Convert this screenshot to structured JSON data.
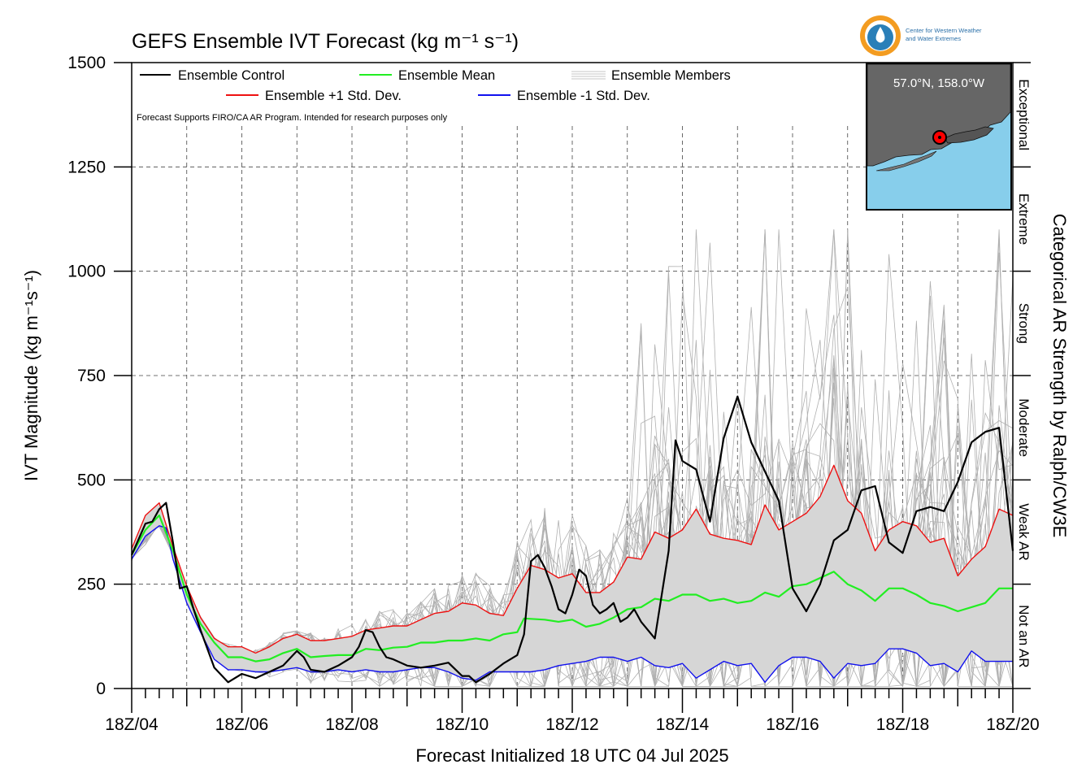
{
  "chart_data": {
    "type": "line",
    "title": "GEFS Ensemble IVT Forecast (kg m⁻¹ s⁻¹)",
    "xlabel": "Forecast Initialized 18 UTC 04 Jul 2025",
    "ylabel": "IVT Magnitude (kg m⁻¹s⁻¹)",
    "right_label": "Categorical AR Strength by Ralph/CW3E",
    "note": "Forecast Supports FIRO/CA AR Program. Intended for research purposes only",
    "x_unit": "days since 18Z/04",
    "xlim": [
      0,
      16
    ],
    "ylim": [
      0,
      1500
    ],
    "x_ticks": [
      {
        "x": 0,
        "label": "18Z/04"
      },
      {
        "x": 2,
        "label": "18Z/06"
      },
      {
        "x": 4,
        "label": "18Z/08"
      },
      {
        "x": 6,
        "label": "18Z/10"
      },
      {
        "x": 8,
        "label": "18Z/12"
      },
      {
        "x": 10,
        "label": "18Z/14"
      },
      {
        "x": 12,
        "label": "18Z/16"
      },
      {
        "x": 14,
        "label": "18Z/18"
      },
      {
        "x": 16,
        "label": "18Z/20"
      }
    ],
    "y_ticks": [
      0,
      250,
      500,
      750,
      1000,
      1250,
      1500
    ],
    "grid": true,
    "legend": [
      {
        "name": "Ensemble Control",
        "color": "#000000"
      },
      {
        "name": "Ensemble Mean",
        "color": "#22ee22"
      },
      {
        "name": "Ensemble Members",
        "color": "#b0b0b0"
      },
      {
        "name": "Ensemble +1 Std. Dev.",
        "color": "#ee1111"
      },
      {
        "name": "Ensemble -1 Std. Dev.",
        "color": "#1111ee"
      }
    ],
    "categories": [
      {
        "label": "Not an AR",
        "from": 0,
        "to": 250
      },
      {
        "label": "Weak AR",
        "from": 250,
        "to": 500
      },
      {
        "label": "Moderate",
        "from": 500,
        "to": 750
      },
      {
        "label": "Strong",
        "from": 750,
        "to": 1000
      },
      {
        "label": "Extreme",
        "from": 1000,
        "to": 1250
      },
      {
        "label": "Exceptional",
        "from": 1250,
        "to": 1500
      }
    ],
    "series": [
      {
        "name": "Ensemble Control",
        "color": "#000000",
        "points": [
          [
            0,
            320
          ],
          [
            0.25,
            395
          ],
          [
            0.375,
            400
          ],
          [
            0.5,
            430
          ],
          [
            0.625,
            445
          ],
          [
            0.75,
            350
          ],
          [
            0.875,
            240
          ],
          [
            1,
            245
          ],
          [
            1.125,
            190
          ],
          [
            1.25,
            140
          ],
          [
            1.5,
            50
          ],
          [
            1.75,
            15
          ],
          [
            2,
            35
          ],
          [
            2.25,
            25
          ],
          [
            2.5,
            40
          ],
          [
            2.75,
            55
          ],
          [
            3,
            90
          ],
          [
            3.125,
            75
          ],
          [
            3.25,
            45
          ],
          [
            3.5,
            40
          ],
          [
            3.75,
            55
          ],
          [
            4,
            75
          ],
          [
            4.125,
            100
          ],
          [
            4.25,
            140
          ],
          [
            4.375,
            135
          ],
          [
            4.5,
            100
          ],
          [
            4.625,
            75
          ],
          [
            4.75,
            70
          ],
          [
            5,
            55
          ],
          [
            5.25,
            50
          ],
          [
            5.5,
            55
          ],
          [
            5.75,
            62
          ],
          [
            6,
            30
          ],
          [
            6.125,
            30
          ],
          [
            6.25,
            15
          ],
          [
            6.5,
            35
          ],
          [
            6.75,
            60
          ],
          [
            7,
            80
          ],
          [
            7.125,
            130
          ],
          [
            7.25,
            305
          ],
          [
            7.375,
            320
          ],
          [
            7.5,
            290
          ],
          [
            7.625,
            245
          ],
          [
            7.75,
            190
          ],
          [
            7.875,
            180
          ],
          [
            8,
            225
          ],
          [
            8.125,
            285
          ],
          [
            8.25,
            270
          ],
          [
            8.375,
            200
          ],
          [
            8.5,
            180
          ],
          [
            8.625,
            190
          ],
          [
            8.75,
            205
          ],
          [
            8.875,
            160
          ],
          [
            9,
            170
          ],
          [
            9.125,
            190
          ],
          [
            9.25,
            160
          ],
          [
            9.5,
            120
          ],
          [
            9.75,
            330
          ],
          [
            9.875,
            595
          ],
          [
            10,
            545
          ],
          [
            10.25,
            525
          ],
          [
            10.5,
            400
          ],
          [
            10.75,
            600
          ],
          [
            11,
            700
          ],
          [
            11.25,
            590
          ],
          [
            11.5,
            520
          ],
          [
            11.75,
            450
          ],
          [
            12,
            240
          ],
          [
            12.25,
            185
          ],
          [
            12.5,
            250
          ],
          [
            12.75,
            355
          ],
          [
            13,
            380
          ],
          [
            13.25,
            475
          ],
          [
            13.5,
            485
          ],
          [
            13.75,
            350
          ],
          [
            14,
            325
          ],
          [
            14.25,
            425
          ],
          [
            14.5,
            435
          ],
          [
            14.75,
            425
          ],
          [
            15,
            495
          ],
          [
            15.25,
            590
          ],
          [
            15.5,
            615
          ],
          [
            15.75,
            625
          ],
          [
            16,
            330
          ]
        ]
      },
      {
        "name": "Ensemble Mean",
        "color": "#22ee22",
        "points": [
          [
            0,
            320
          ],
          [
            0.25,
            380
          ],
          [
            0.5,
            415
          ],
          [
            0.75,
            330
          ],
          [
            1,
            225
          ],
          [
            1.25,
            155
          ],
          [
            1.5,
            110
          ],
          [
            1.75,
            75
          ],
          [
            2,
            75
          ],
          [
            2.25,
            65
          ],
          [
            2.5,
            70
          ],
          [
            2.75,
            85
          ],
          [
            3,
            95
          ],
          [
            3.25,
            75
          ],
          [
            3.5,
            78
          ],
          [
            3.75,
            80
          ],
          [
            4,
            80
          ],
          [
            4.25,
            95
          ],
          [
            4.5,
            92
          ],
          [
            4.75,
            98
          ],
          [
            5,
            100
          ],
          [
            5.25,
            110
          ],
          [
            5.5,
            110
          ],
          [
            5.75,
            115
          ],
          [
            6,
            115
          ],
          [
            6.25,
            120
          ],
          [
            6.5,
            115
          ],
          [
            6.75,
            130
          ],
          [
            7,
            135
          ],
          [
            7.125,
            168
          ],
          [
            7.5,
            165
          ],
          [
            7.75,
            160
          ],
          [
            8,
            165
          ],
          [
            8.25,
            148
          ],
          [
            8.5,
            155
          ],
          [
            8.75,
            170
          ],
          [
            9,
            190
          ],
          [
            9.25,
            195
          ],
          [
            9.5,
            215
          ],
          [
            9.75,
            210
          ],
          [
            10,
            225
          ],
          [
            10.25,
            225
          ],
          [
            10.5,
            210
          ],
          [
            10.75,
            215
          ],
          [
            11,
            205
          ],
          [
            11.25,
            210
          ],
          [
            11.5,
            230
          ],
          [
            11.75,
            220
          ],
          [
            12,
            245
          ],
          [
            12.25,
            250
          ],
          [
            12.5,
            265
          ],
          [
            12.75,
            280
          ],
          [
            13,
            250
          ],
          [
            13.25,
            235
          ],
          [
            13.5,
            210
          ],
          [
            13.75,
            240
          ],
          [
            14,
            240
          ],
          [
            14.25,
            225
          ],
          [
            14.5,
            205
          ],
          [
            14.75,
            198
          ],
          [
            15,
            185
          ],
          [
            15.25,
            195
          ],
          [
            15.5,
            205
          ],
          [
            15.75,
            240
          ],
          [
            16,
            240
          ]
        ]
      },
      {
        "name": "Ensemble +1 Std. Dev.",
        "color": "#ee1111",
        "points": [
          [
            0,
            335
          ],
          [
            0.25,
            415
          ],
          [
            0.5,
            445
          ],
          [
            0.75,
            340
          ],
          [
            1,
            245
          ],
          [
            1.25,
            170
          ],
          [
            1.5,
            120
          ],
          [
            1.75,
            100
          ],
          [
            2,
            100
          ],
          [
            2.25,
            85
          ],
          [
            2.5,
            100
          ],
          [
            2.75,
            120
          ],
          [
            3,
            130
          ],
          [
            3.25,
            115
          ],
          [
            3.5,
            115
          ],
          [
            3.75,
            120
          ],
          [
            4,
            125
          ],
          [
            4.25,
            140
          ],
          [
            4.5,
            145
          ],
          [
            4.75,
            150
          ],
          [
            5,
            150
          ],
          [
            5.25,
            165
          ],
          [
            5.5,
            180
          ],
          [
            5.75,
            185
          ],
          [
            6,
            205
          ],
          [
            6.25,
            200
          ],
          [
            6.5,
            180
          ],
          [
            6.75,
            175
          ],
          [
            7,
            240
          ],
          [
            7.25,
            295
          ],
          [
            7.5,
            285
          ],
          [
            7.75,
            265
          ],
          [
            8,
            275
          ],
          [
            8.25,
            230
          ],
          [
            8.5,
            230
          ],
          [
            8.75,
            255
          ],
          [
            9,
            315
          ],
          [
            9.25,
            310
          ],
          [
            9.5,
            375
          ],
          [
            9.75,
            360
          ],
          [
            10,
            380
          ],
          [
            10.25,
            430
          ],
          [
            10.5,
            370
          ],
          [
            10.75,
            360
          ],
          [
            11,
            355
          ],
          [
            11.25,
            345
          ],
          [
            11.5,
            440
          ],
          [
            11.75,
            380
          ],
          [
            12,
            400
          ],
          [
            12.25,
            420
          ],
          [
            12.5,
            460
          ],
          [
            12.75,
            535
          ],
          [
            13,
            450
          ],
          [
            13.25,
            420
          ],
          [
            13.5,
            330
          ],
          [
            13.75,
            380
          ],
          [
            14,
            400
          ],
          [
            14.25,
            390
          ],
          [
            14.5,
            350
          ],
          [
            14.75,
            360
          ],
          [
            15,
            270
          ],
          [
            15.25,
            310
          ],
          [
            15.5,
            340
          ],
          [
            15.75,
            430
          ],
          [
            16,
            415
          ]
        ]
      },
      {
        "name": "Ensemble -1 Std. Dev.",
        "color": "#1111ee",
        "points": [
          [
            0,
            310
          ],
          [
            0.25,
            365
          ],
          [
            0.5,
            390
          ],
          [
            0.625,
            385
          ],
          [
            0.75,
            310
          ],
          [
            1,
            205
          ],
          [
            1.25,
            135
          ],
          [
            1.5,
            70
          ],
          [
            1.75,
            45
          ],
          [
            2,
            45
          ],
          [
            2.25,
            40
          ],
          [
            2.5,
            40
          ],
          [
            2.75,
            45
          ],
          [
            3,
            50
          ],
          [
            3.25,
            40
          ],
          [
            3.5,
            40
          ],
          [
            3.75,
            45
          ],
          [
            4,
            40
          ],
          [
            4.25,
            45
          ],
          [
            4.5,
            40
          ],
          [
            4.75,
            40
          ],
          [
            5,
            45
          ],
          [
            5.25,
            50
          ],
          [
            5.5,
            50
          ],
          [
            5.75,
            40
          ],
          [
            6,
            25
          ],
          [
            6.25,
            20
          ],
          [
            6.5,
            40
          ],
          [
            6.75,
            40
          ],
          [
            7,
            40
          ],
          [
            7.25,
            40
          ],
          [
            7.5,
            45
          ],
          [
            7.75,
            55
          ],
          [
            8,
            60
          ],
          [
            8.25,
            65
          ],
          [
            8.5,
            75
          ],
          [
            8.75,
            75
          ],
          [
            9,
            65
          ],
          [
            9.25,
            75
          ],
          [
            9.5,
            55
          ],
          [
            9.75,
            50
          ],
          [
            10,
            60
          ],
          [
            10.25,
            25
          ],
          [
            10.5,
            45
          ],
          [
            10.75,
            65
          ],
          [
            11,
            55
          ],
          [
            11.25,
            60
          ],
          [
            11.5,
            15
          ],
          [
            11.75,
            55
          ],
          [
            12,
            75
          ],
          [
            12.25,
            75
          ],
          [
            12.5,
            65
          ],
          [
            12.75,
            25
          ],
          [
            13,
            60
          ],
          [
            13.25,
            55
          ],
          [
            13.5,
            60
          ],
          [
            13.75,
            95
          ],
          [
            14,
            95
          ],
          [
            14.25,
            85
          ],
          [
            14.5,
            55
          ],
          [
            14.75,
            60
          ],
          [
            15,
            40
          ],
          [
            15.25,
            90
          ],
          [
            15.5,
            65
          ],
          [
            15.75,
            65
          ],
          [
            16,
            65
          ]
        ]
      }
    ],
    "members_range": [
      0,
      1100
    ]
  },
  "inset_map": {
    "coord_label": "57.0°N, 158.0°W",
    "ocean_color": "#87ceeb",
    "land_color": "#666666",
    "marker_color": "#ff0000"
  },
  "logo": {
    "line1": "Center for Western Weather",
    "line2": "and Water Extremes"
  }
}
